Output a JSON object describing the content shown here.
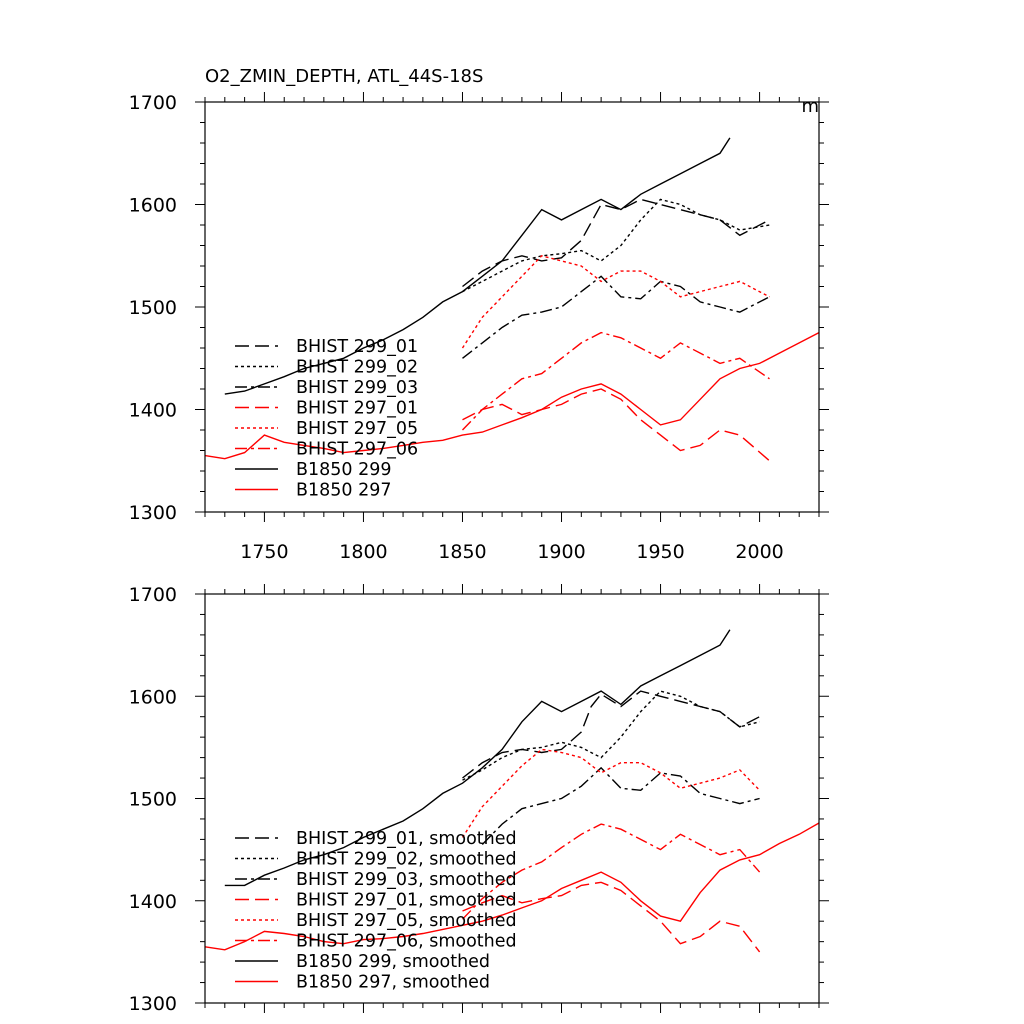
{
  "chart_data": [
    {
      "type": "line",
      "title": "O2_ZMIN_DEPTH, ATL_44S-18S",
      "units_label": "m",
      "xlabel": "",
      "ylabel": "",
      "xlim": [
        1720,
        2030
      ],
      "ylim": [
        1300,
        1700
      ],
      "x_ticks": [
        1750,
        1800,
        1850,
        1900,
        1950,
        2000
      ],
      "x_tick_labels": [
        "1750",
        "1800",
        "1850",
        "1900",
        "1950",
        "2000"
      ],
      "y_ticks": [
        1300,
        1400,
        1500,
        1600,
        1700
      ],
      "y_tick_labels": [
        "1300",
        "1400",
        "1500",
        "1600",
        "1700"
      ],
      "legend_position": "bottom-left",
      "series": [
        {
          "name": "BHIST 299_01",
          "color": "#000000",
          "dash": "long-dash",
          "x": [
            1850,
            1860,
            1870,
            1880,
            1890,
            1900,
            1910,
            1920,
            1930,
            1940,
            1950,
            1960,
            1970,
            1980,
            1990,
            2005
          ],
          "values": [
            1520,
            1535,
            1545,
            1550,
            1545,
            1548,
            1565,
            1600,
            1595,
            1605,
            1600,
            1595,
            1590,
            1585,
            1570,
            1585
          ]
        },
        {
          "name": "BHIST 299_02",
          "color": "#000000",
          "dash": "short-dash",
          "x": [
            1850,
            1860,
            1870,
            1880,
            1890,
            1900,
            1910,
            1920,
            1930,
            1940,
            1950,
            1960,
            1970,
            1980,
            1990,
            2005
          ],
          "values": [
            1515,
            1525,
            1535,
            1545,
            1550,
            1552,
            1555,
            1545,
            1560,
            1585,
            1605,
            1600,
            1590,
            1585,
            1575,
            1580
          ]
        },
        {
          "name": "BHIST 299_03",
          "color": "#000000",
          "dash": "dash-dot",
          "x": [
            1850,
            1860,
            1870,
            1880,
            1890,
            1900,
            1910,
            1920,
            1930,
            1940,
            1950,
            1960,
            1970,
            1980,
            1990,
            2005
          ],
          "values": [
            1450,
            1465,
            1480,
            1492,
            1495,
            1500,
            1515,
            1530,
            1510,
            1508,
            1525,
            1520,
            1505,
            1500,
            1495,
            1510
          ]
        },
        {
          "name": "BHIST 297_01",
          "color": "#ff0000",
          "dash": "long-dash",
          "x": [
            1850,
            1860,
            1870,
            1880,
            1890,
            1900,
            1910,
            1920,
            1930,
            1940,
            1950,
            1960,
            1970,
            1980,
            1990,
            2005
          ],
          "values": [
            1390,
            1400,
            1405,
            1395,
            1400,
            1405,
            1415,
            1420,
            1410,
            1390,
            1375,
            1360,
            1365,
            1380,
            1375,
            1350
          ]
        },
        {
          "name": "BHIST 297_05",
          "color": "#ff0000",
          "dash": "short-dash",
          "x": [
            1850,
            1860,
            1870,
            1880,
            1890,
            1900,
            1910,
            1920,
            1930,
            1940,
            1950,
            1960,
            1970,
            1980,
            1990,
            2005
          ],
          "values": [
            1460,
            1490,
            1510,
            1530,
            1550,
            1545,
            1540,
            1525,
            1535,
            1535,
            1525,
            1510,
            1515,
            1520,
            1525,
            1510
          ]
        },
        {
          "name": "BHIST 297_06",
          "color": "#ff0000",
          "dash": "dash-dot",
          "x": [
            1850,
            1860,
            1870,
            1880,
            1890,
            1900,
            1910,
            1920,
            1930,
            1940,
            1950,
            1960,
            1970,
            1980,
            1990,
            2005
          ],
          "values": [
            1380,
            1400,
            1415,
            1430,
            1435,
            1450,
            1465,
            1475,
            1470,
            1460,
            1450,
            1465,
            1455,
            1445,
            1450,
            1430
          ]
        },
        {
          "name": "B1850 299",
          "color": "#000000",
          "dash": "solid",
          "x": [
            1730,
            1740,
            1750,
            1760,
            1770,
            1780,
            1790,
            1800,
            1810,
            1820,
            1830,
            1840,
            1850,
            1860,
            1870,
            1880,
            1890,
            1900,
            1910,
            1920,
            1930,
            1940,
            1950,
            1960,
            1970,
            1980,
            1985
          ],
          "values": [
            1415,
            1418,
            1425,
            1432,
            1440,
            1445,
            1450,
            1460,
            1468,
            1478,
            1490,
            1505,
            1515,
            1530,
            1545,
            1570,
            1595,
            1585,
            1595,
            1605,
            1595,
            1610,
            1620,
            1630,
            1640,
            1650,
            1665
          ]
        },
        {
          "name": "B1850 297",
          "color": "#ff0000",
          "dash": "solid",
          "x": [
            1720,
            1730,
            1740,
            1750,
            1760,
            1770,
            1780,
            1790,
            1800,
            1810,
            1820,
            1830,
            1840,
            1850,
            1860,
            1870,
            1880,
            1890,
            1900,
            1910,
            1920,
            1930,
            1940,
            1950,
            1960,
            1970,
            1980,
            1990,
            2000,
            2010,
            2020,
            2030
          ],
          "values": [
            1355,
            1352,
            1358,
            1375,
            1368,
            1365,
            1362,
            1358,
            1360,
            1362,
            1365,
            1368,
            1370,
            1375,
            1378,
            1385,
            1392,
            1400,
            1412,
            1420,
            1425,
            1415,
            1400,
            1385,
            1390,
            1410,
            1430,
            1440,
            1445,
            1455,
            1465,
            1475
          ]
        }
      ]
    },
    {
      "type": "line",
      "title": "",
      "xlabel": "",
      "ylabel": "",
      "xlim": [
        1720,
        2030
      ],
      "ylim": [
        1300,
        1700
      ],
      "y_ticks": [
        1300,
        1400,
        1500,
        1600,
        1700
      ],
      "y_tick_labels": [
        "1300",
        "1400",
        "1500",
        "1600",
        "1700"
      ],
      "legend_position": "bottom-left",
      "series": [
        {
          "name": "BHIST 299_01, smoothed",
          "color": "#000000",
          "dash": "long-dash",
          "x": [
            1850,
            1860,
            1870,
            1880,
            1890,
            1900,
            1910,
            1915,
            1920,
            1930,
            1940,
            1950,
            1960,
            1970,
            1980,
            1990,
            2000
          ],
          "values": [
            1520,
            1535,
            1545,
            1548,
            1545,
            1548,
            1565,
            1590,
            1602,
            1590,
            1605,
            1600,
            1595,
            1590,
            1585,
            1570,
            1580
          ]
        },
        {
          "name": "BHIST 299_02, smoothed",
          "color": "#000000",
          "dash": "short-dash",
          "x": [
            1850,
            1860,
            1870,
            1880,
            1890,
            1900,
            1910,
            1920,
            1930,
            1940,
            1950,
            1960,
            1970,
            1980,
            1990,
            2000
          ],
          "values": [
            1518,
            1528,
            1540,
            1548,
            1550,
            1555,
            1550,
            1540,
            1560,
            1585,
            1605,
            1600,
            1590,
            1585,
            1570,
            1575
          ]
        },
        {
          "name": "BHIST 299_03, smoothed",
          "color": "#000000",
          "dash": "dash-dot",
          "x": [
            1860,
            1870,
            1880,
            1890,
            1900,
            1910,
            1920,
            1930,
            1940,
            1950,
            1960,
            1970,
            1980,
            1990,
            2000
          ],
          "values": [
            1455,
            1475,
            1490,
            1495,
            1500,
            1512,
            1530,
            1510,
            1508,
            1525,
            1522,
            1505,
            1500,
            1495,
            1500
          ]
        },
        {
          "name": "BHIST 297_01, smoothed",
          "color": "#ff0000",
          "dash": "long-dash",
          "x": [
            1850,
            1860,
            1870,
            1880,
            1890,
            1900,
            1910,
            1920,
            1930,
            1940,
            1950,
            1960,
            1970,
            1980,
            1990,
            2000
          ],
          "values": [
            1390,
            1398,
            1405,
            1398,
            1402,
            1405,
            1415,
            1418,
            1410,
            1395,
            1380,
            1358,
            1365,
            1380,
            1375,
            1350
          ]
        },
        {
          "name": "BHIST 297_05, smoothed",
          "color": "#ff0000",
          "dash": "short-dash",
          "x": [
            1850,
            1860,
            1870,
            1880,
            1890,
            1900,
            1910,
            1920,
            1930,
            1940,
            1950,
            1960,
            1970,
            1980,
            1990,
            2000
          ],
          "values": [
            1462,
            1492,
            1512,
            1532,
            1548,
            1545,
            1540,
            1525,
            1535,
            1535,
            1525,
            1510,
            1515,
            1520,
            1528,
            1508
          ]
        },
        {
          "name": "BHIST 297_06, smoothed",
          "color": "#ff0000",
          "dash": "dash-dot",
          "x": [
            1850,
            1860,
            1870,
            1880,
            1890,
            1900,
            1910,
            1920,
            1930,
            1940,
            1950,
            1960,
            1970,
            1980,
            1990,
            2000
          ],
          "values": [
            1382,
            1402,
            1418,
            1430,
            1438,
            1452,
            1465,
            1475,
            1470,
            1460,
            1450,
            1465,
            1455,
            1445,
            1450,
            1428
          ]
        },
        {
          "name": "B1850 299, smoothed",
          "color": "#000000",
          "dash": "solid",
          "x": [
            1730,
            1740,
            1750,
            1760,
            1770,
            1780,
            1790,
            1800,
            1810,
            1820,
            1830,
            1840,
            1850,
            1860,
            1870,
            1880,
            1890,
            1900,
            1910,
            1920,
            1930,
            1940,
            1950,
            1960,
            1970,
            1980,
            1985
          ],
          "values": [
            1415,
            1415,
            1425,
            1432,
            1440,
            1445,
            1452,
            1462,
            1470,
            1478,
            1490,
            1505,
            1515,
            1530,
            1548,
            1575,
            1595,
            1585,
            1595,
            1605,
            1592,
            1610,
            1620,
            1630,
            1640,
            1650,
            1665
          ]
        },
        {
          "name": "B1850 297, smoothed",
          "color": "#ff0000",
          "dash": "solid",
          "x": [
            1720,
            1730,
            1740,
            1750,
            1760,
            1770,
            1780,
            1790,
            1800,
            1810,
            1820,
            1830,
            1840,
            1850,
            1860,
            1870,
            1880,
            1890,
            1900,
            1910,
            1920,
            1930,
            1940,
            1950,
            1960,
            1970,
            1980,
            1990,
            2000,
            2010,
            2020,
            2030
          ],
          "values": [
            1355,
            1352,
            1360,
            1370,
            1368,
            1365,
            1360,
            1358,
            1362,
            1363,
            1365,
            1368,
            1372,
            1376,
            1380,
            1386,
            1393,
            1400,
            1412,
            1420,
            1428,
            1418,
            1400,
            1385,
            1380,
            1408,
            1430,
            1440,
            1445,
            1456,
            1465,
            1476
          ]
        }
      ]
    }
  ]
}
